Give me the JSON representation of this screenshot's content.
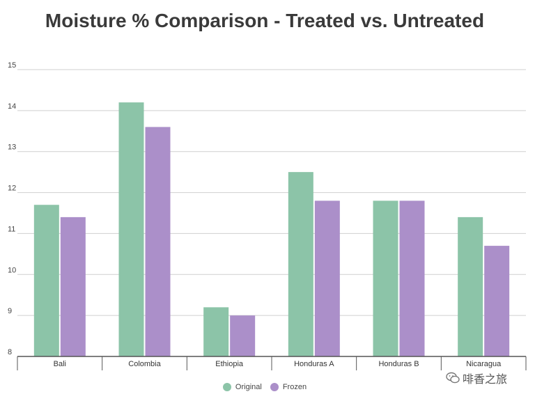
{
  "chart_data": {
    "type": "bar",
    "title": "Moisture % Comparison - Treated vs. Untreated",
    "xlabel": "",
    "ylabel": "",
    "categories": [
      "Bali",
      "Colombia",
      "Ethiopia",
      "Honduras A",
      "Honduras B",
      "Nicaragua"
    ],
    "series": [
      {
        "name": "Original",
        "color": "#8cc4a8",
        "values": [
          11.7,
          14.2,
          9.2,
          12.5,
          11.8,
          11.4
        ]
      },
      {
        "name": "Frozen",
        "color": "#ab8fc9",
        "values": [
          11.4,
          13.6,
          9.0,
          11.8,
          11.8,
          10.7
        ]
      }
    ],
    "ylim": [
      8,
      15
    ],
    "yticks": [
      8,
      9,
      10,
      11,
      12,
      13,
      14,
      15
    ],
    "grid": true,
    "legend": "bottom-center"
  },
  "legend": {
    "items": [
      {
        "label": "Original",
        "color": "#8cc4a8"
      },
      {
        "label": "Frozen",
        "color": "#ab8fc9"
      }
    ]
  },
  "watermark": {
    "text": "啡香之旅",
    "icon": "wechat-icon"
  }
}
